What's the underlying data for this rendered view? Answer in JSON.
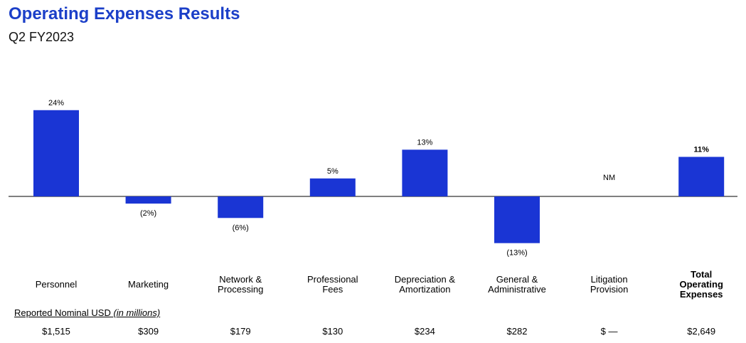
{
  "header": {
    "title": "Operating Expenses Results",
    "subtitle": "Q2 FY2023"
  },
  "footnote": {
    "text": "Reported Nominal USD ",
    "italic": "(in millions)"
  },
  "colors": {
    "title": "#1b3fc8",
    "bar": "#1a35d4",
    "axis": "#000000"
  },
  "chart_data": {
    "type": "bar",
    "title": "",
    "categories": [
      "Personnel",
      "Marketing",
      "Network &\nProcessing",
      "Professional\nFees",
      "Depreciation &\nAmortization",
      "General &\nAdministrative",
      "Litigation\nProvision",
      "Total\nOperating\nExpenses"
    ],
    "values": [
      24,
      -2,
      -6,
      5,
      13,
      -13,
      null,
      11
    ],
    "data_labels": [
      "24%",
      "(2%)",
      "(6%)",
      "5%",
      "13%",
      "(13%)",
      "NM",
      "11%"
    ],
    "amounts": [
      "$1,515",
      "$309",
      "$179",
      "$130",
      "$234",
      "$282",
      "$ —",
      "$2,649"
    ],
    "bold_categories": [
      false,
      false,
      false,
      false,
      false,
      false,
      false,
      true
    ],
    "unit": "%",
    "ylim": [
      -17,
      29
    ],
    "grid": false,
    "legend": "none"
  }
}
